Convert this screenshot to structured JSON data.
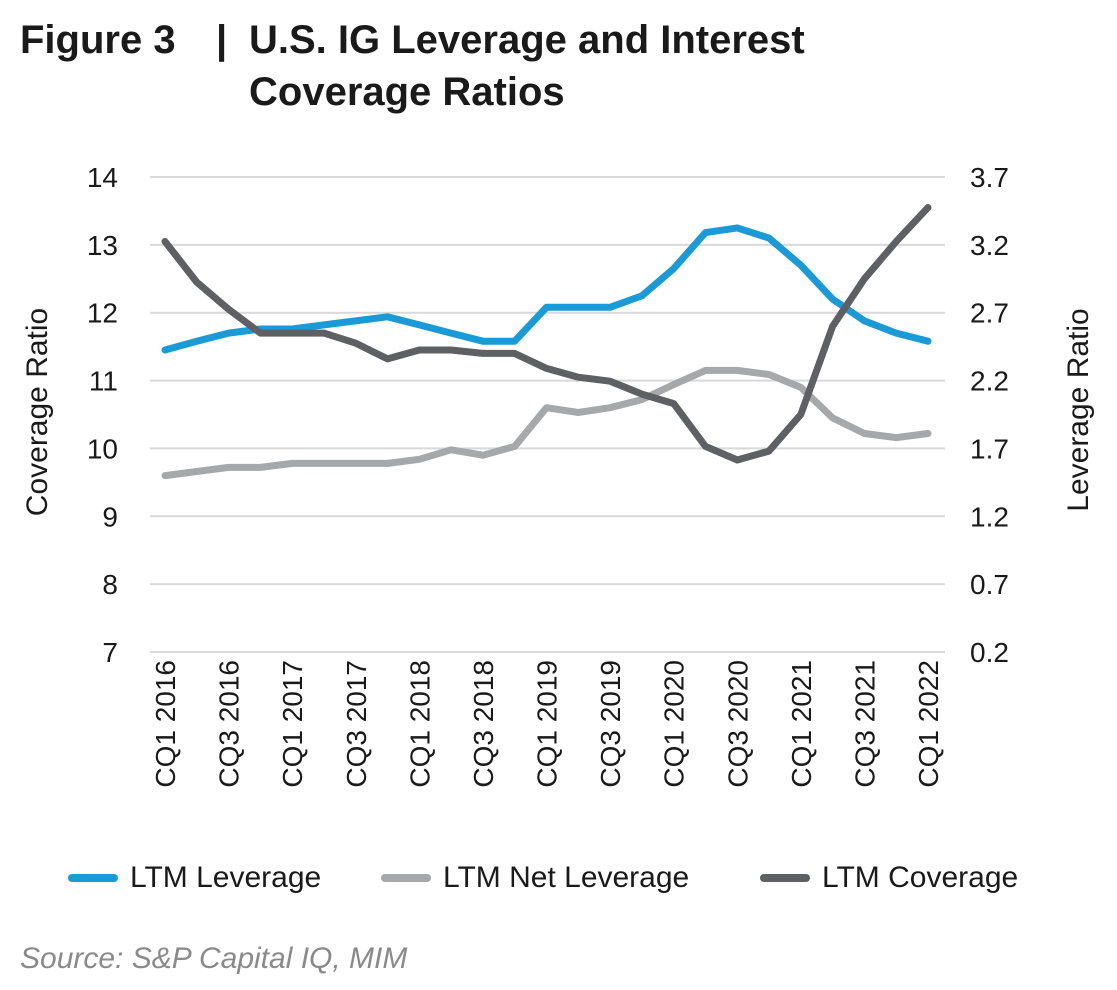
{
  "title": {
    "prefix": "Figure 3",
    "separator": "|",
    "main": "U.S. IG Leverage and Interest Coverage Ratios"
  },
  "source": "Source: S&P Capital IQ, MIM",
  "colors": {
    "ltm_leverage": "#1a9ad6",
    "ltm_net_leverage": "#a6a8aa",
    "ltm_coverage": "#5f6063",
    "grid": "#d9d9d9"
  },
  "chart_data": {
    "type": "line",
    "title": "U.S. IG Leverage and Interest Coverage Ratios",
    "ylabel_left": "Coverage Ratio",
    "ylabel_right": "Leverage Ratio",
    "ylim_left": [
      7,
      14
    ],
    "ylim_right": [
      0.2,
      3.7
    ],
    "yticks_left": [
      "14",
      "13",
      "12",
      "11",
      "10",
      "9",
      "8",
      "7"
    ],
    "yticks_right": [
      "3.7",
      "3.2",
      "2.7",
      "2.2",
      "1.7",
      "1.2",
      "0.7",
      "0.2"
    ],
    "grid": true,
    "legend_position": "bottom",
    "categories": [
      "CQ1 2016",
      "CQ2 2016",
      "CQ3 2016",
      "CQ4 2016",
      "CQ1 2017",
      "CQ2 2017",
      "CQ3 2017",
      "CQ4 2017",
      "CQ1 2018",
      "CQ2 2018",
      "CQ3 2018",
      "CQ4 2018",
      "CQ1 2019",
      "CQ2 2019",
      "CQ3 2019",
      "CQ4 2019",
      "CQ1 2020",
      "CQ2 2020",
      "CQ3 2020",
      "CQ4 2020",
      "CQ1 2021",
      "CQ2 2021",
      "CQ3 2021",
      "CQ4 2021",
      "CQ1 2022"
    ],
    "xtick_labels": [
      "CQ1 2016",
      "CQ3 2016",
      "CQ1 2017",
      "CQ3 2017",
      "CQ1 2018",
      "CQ3 2018",
      "CQ1 2019",
      "CQ3 2019",
      "CQ1 2020",
      "CQ3 2020",
      "CQ1 2021",
      "CQ3 2021",
      "CQ1 2022"
    ],
    "series": [
      {
        "name": "LTM Leverage",
        "axis": "left",
        "values": [
          11.45,
          11.58,
          11.7,
          11.76,
          11.76,
          11.82,
          11.88,
          11.94,
          11.82,
          11.7,
          11.58,
          11.58,
          12.08,
          12.08,
          12.08,
          12.25,
          12.65,
          13.18,
          13.25,
          13.1,
          12.7,
          12.2,
          11.88,
          11.7,
          11.58
        ]
      },
      {
        "name": "LTM Net Leverage",
        "axis": "left",
        "values": [
          9.6,
          9.66,
          9.72,
          9.72,
          9.78,
          9.78,
          9.78,
          9.78,
          9.84,
          9.98,
          9.9,
          10.03,
          10.6,
          10.53,
          10.6,
          10.72,
          10.94,
          11.15,
          11.15,
          11.09,
          10.9,
          10.45,
          10.22,
          10.16,
          10.22
        ]
      },
      {
        "name": "LTM Coverage",
        "axis": "left",
        "values": [
          13.05,
          12.45,
          12.05,
          11.7,
          11.7,
          11.7,
          11.55,
          11.32,
          11.45,
          11.45,
          11.4,
          11.4,
          11.18,
          11.05,
          10.99,
          10.8,
          10.66,
          10.03,
          9.83,
          9.96,
          10.5,
          11.8,
          12.5,
          13.05,
          13.55
        ]
      }
    ]
  }
}
